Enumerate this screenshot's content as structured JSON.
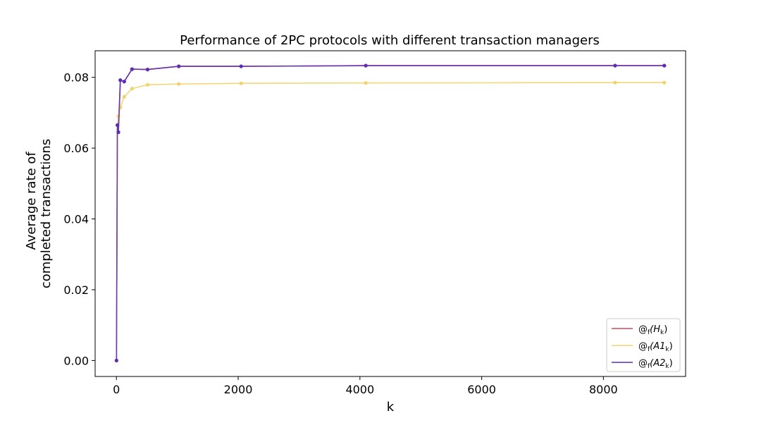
{
  "chart_data": {
    "type": "line",
    "title": "Performance of 2PC protocols with different transaction managers",
    "xlabel": "k",
    "ylabel_lines": [
      "Average rate of",
      "completed transactions"
    ],
    "xlim": [
      -350,
      9350
    ],
    "ylim": [
      -0.0045,
      0.0875
    ],
    "x_ticks": [
      0,
      2000,
      4000,
      6000,
      8000
    ],
    "x_tick_labels": [
      "0",
      "2000",
      "4000",
      "6000",
      "8000"
    ],
    "y_ticks": [
      0.0,
      0.02,
      0.04,
      0.06,
      0.08
    ],
    "y_tick_labels": [
      "0.00",
      "0.02",
      "0.04",
      "0.06",
      "0.08"
    ],
    "grid": false,
    "legend_position": "lower-right",
    "series": [
      {
        "name_main": "@",
        "name_sub1": "f",
        "name_arg": "(H",
        "name_sub2": "k",
        "name_end": ")",
        "color": "#d1495b",
        "x": [
          1,
          16,
          32,
          64,
          128,
          256,
          512,
          1024,
          2048,
          4096,
          8192,
          9000
        ],
        "y": [
          0.0,
          0.0665,
          0.0645,
          0.0792,
          0.0788,
          0.0823,
          0.0822,
          0.0831,
          0.0831,
          0.0833,
          0.0833,
          0.0833
        ]
      },
      {
        "name_main": "@",
        "name_sub1": "f",
        "name_arg": "(A1",
        "name_sub2": "k",
        "name_end": ")",
        "color": "#f0d36a",
        "x": [
          1,
          16,
          32,
          64,
          128,
          256,
          512,
          1024,
          2048,
          4096,
          8192,
          9000
        ],
        "y": [
          0.0,
          0.0665,
          0.069,
          0.0715,
          0.0745,
          0.0768,
          0.0779,
          0.0781,
          0.0783,
          0.0784,
          0.0785,
          0.0785
        ]
      },
      {
        "name_main": "@",
        "name_sub1": "f",
        "name_arg": "(A2",
        "name_sub2": "k",
        "name_end": ")",
        "color": "#5b2fb5",
        "x": [
          1,
          16,
          32,
          64,
          128,
          256,
          512,
          1024,
          2048,
          4096,
          8192,
          9000
        ],
        "y": [
          0.0,
          0.0665,
          0.0645,
          0.0792,
          0.0788,
          0.0823,
          0.0822,
          0.0831,
          0.0831,
          0.0833,
          0.0833,
          0.0833
        ]
      }
    ]
  }
}
